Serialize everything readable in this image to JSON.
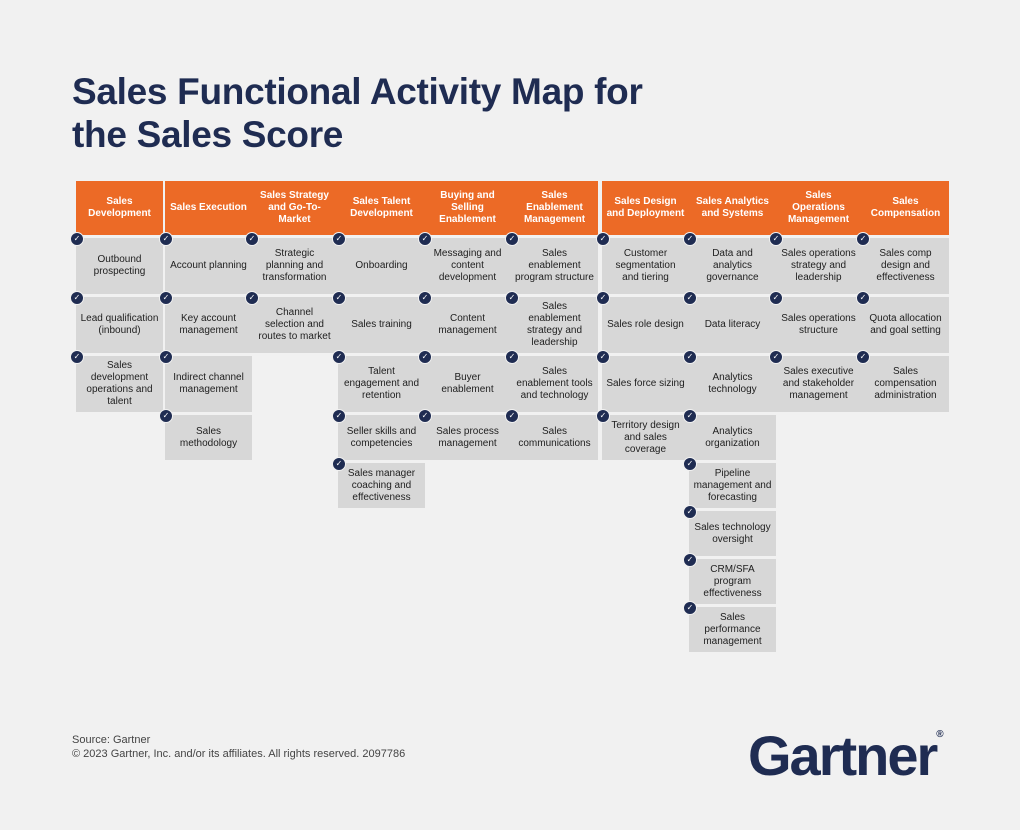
{
  "title": {
    "line1": "Sales Functional Activity Map for",
    "line2": "the Sales Score"
  },
  "columns": [
    {
      "header": "Sales Development",
      "items": [
        "Outbound prospecting",
        "Lead qualification (inbound)",
        "Sales development operations and talent"
      ]
    },
    {
      "header": "Sales Execution",
      "items": [
        "Account planning",
        "Key account management",
        "Indirect channel management",
        "Sales methodology"
      ]
    },
    {
      "header": "Sales Strategy and Go-To-Market",
      "items": [
        "Strategic planning and transformation",
        "Channel selection and routes to market"
      ]
    },
    {
      "header": "Sales Talent Development",
      "items": [
        "Onboarding",
        "Sales training",
        "Talent engagement and retention",
        "Seller skills and competencies",
        "Sales manager coaching and effectiveness"
      ]
    },
    {
      "header": "Buying and Selling Enablement",
      "items": [
        "Messaging and content development",
        "Content management",
        "Buyer enablement",
        "Sales process management"
      ]
    },
    {
      "header": "Sales Enablement Management",
      "items": [
        "Sales enablement program structure",
        "Sales enablement strategy and leadership",
        "Sales enablement tools and technology",
        "Sales communications"
      ]
    },
    {
      "header": "Sales Design and Deployment",
      "items": [
        "Customer segmentation and tiering",
        "Sales role design",
        "Sales force sizing",
        "Territory design and sales coverage"
      ]
    },
    {
      "header": "Sales Analytics and Systems",
      "items": [
        "Data and analytics governance",
        "Data literacy",
        "Analytics technology",
        "Analytics organization",
        "Pipeline management and forecasting",
        "Sales technology oversight",
        "CRM/SFA program effectiveness",
        "Sales performance management"
      ]
    },
    {
      "header": "Sales Operations Management",
      "items": [
        "Sales operations strategy and leadership",
        "Sales operations structure",
        "Sales executive and stakeholder management"
      ]
    },
    {
      "header": "Sales Compensation",
      "items": [
        "Sales comp design and effectiveness",
        "Quota allocation and goal setting",
        "Sales compensation administration"
      ]
    }
  ],
  "footer": {
    "source": "Source: Gartner",
    "copyright": "© 2023 Gartner, Inc. and/or its affiliates. All rights reserved. 2097786"
  },
  "logo": {
    "text": "Gartner",
    "mark": "®"
  },
  "colors": {
    "header_orange": "#ec6a26",
    "navy": "#1f2c52",
    "cell_gray": "#d7d7d7",
    "background": "#f1f1f1"
  },
  "icons": {
    "check": "check-circle-icon"
  }
}
